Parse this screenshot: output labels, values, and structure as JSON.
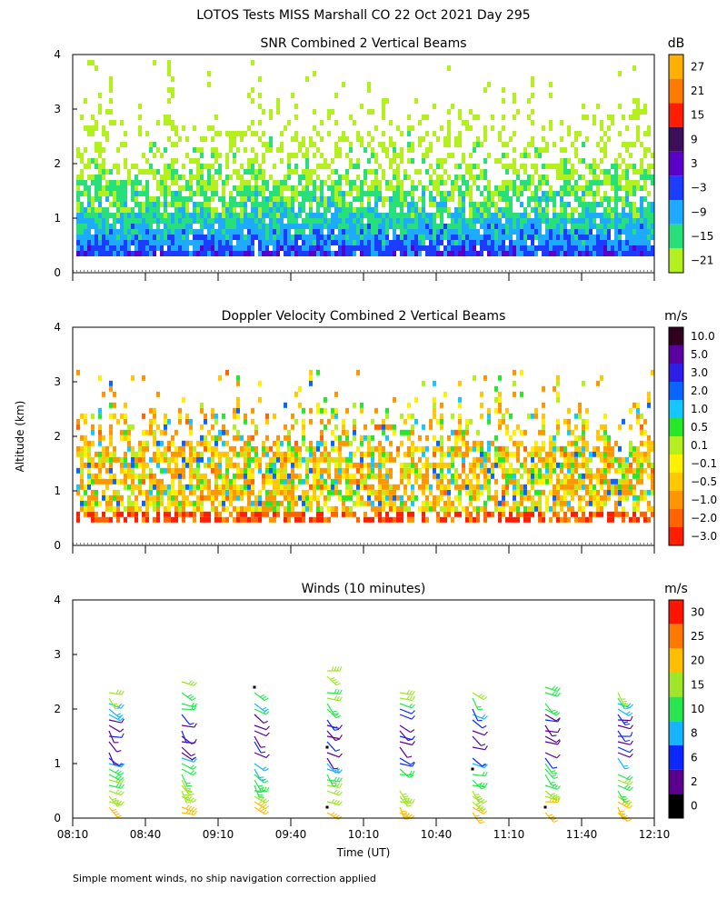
{
  "title": "LOTOS Tests MISS Marshall CO  22 Oct 2021 Day 295",
  "ylabel": "Altitude (km)",
  "xlabel": "Time (UT)",
  "footnote": "Simple moment winds, no ship navigation correction applied",
  "chart_data": [
    {
      "type": "heatmap",
      "title": "SNR Combined 2 Vertical Beams",
      "unit": "dB",
      "ylim": [
        0,
        4
      ],
      "yticks": [
        "0",
        "1",
        "2",
        "3",
        "4"
      ],
      "colorbar": [
        {
          "label": "27",
          "color": "#ffb000"
        },
        {
          "label": "21",
          "color": "#ff7a00"
        },
        {
          "label": "15",
          "color": "#ff1e00"
        },
        {
          "label": "9",
          "color": "#3d0e5a"
        },
        {
          "label": "3",
          "color": "#5a00c8"
        },
        {
          "label": "−3",
          "color": "#1c3cff"
        },
        {
          "label": "−9",
          "color": "#1eaaff"
        },
        {
          "label": "−15",
          "color": "#28e07a"
        },
        {
          "label": "−21",
          "color": "#b4f01e"
        }
      ],
      "profile_km": [
        0.3,
        0.5,
        0.8,
        1.1,
        1.4,
        1.7,
        2.0,
        2.4,
        2.8,
        3.2,
        3.6
      ],
      "profile_db": [
        1,
        -4,
        -8,
        -12,
        -14,
        -17,
        -19,
        -20,
        -21,
        -21,
        -21
      ]
    },
    {
      "type": "heatmap",
      "title": "Doppler Velocity Combined 2 Vertical Beams",
      "unit": "m/s",
      "ylim": [
        0,
        4
      ],
      "yticks": [
        "0",
        "1",
        "2",
        "3",
        "4"
      ],
      "colorbar": [
        {
          "label": "10.0",
          "color": "#300020"
        },
        {
          "label": "5.0",
          "color": "#5a00a0"
        },
        {
          "label": "3.0",
          "color": "#2d1ee6"
        },
        {
          "label": "2.0",
          "color": "#0a64ff"
        },
        {
          "label": "1.0",
          "color": "#14c8ff"
        },
        {
          "label": "0.5",
          "color": "#28e628"
        },
        {
          "label": "0.1",
          "color": "#b4f01e"
        },
        {
          "label": "−0.1",
          "color": "#fff000"
        },
        {
          "label": "−0.5",
          "color": "#ffc800"
        },
        {
          "label": "−1.0",
          "color": "#ff9600"
        },
        {
          "label": "−2.0",
          "color": "#ff6400"
        },
        {
          "label": "−3.0",
          "color": "#ff1e00"
        }
      ]
    },
    {
      "type": "barbs",
      "title": "Winds (10 minutes)",
      "unit": "m/s",
      "ylim": [
        0,
        4
      ],
      "yticks": [
        "0",
        "1",
        "2",
        "3",
        "4"
      ],
      "colorbar": [
        {
          "label": "30",
          "color": "#ff1400"
        },
        {
          "label": "25",
          "color": "#ff7800"
        },
        {
          "label": "20",
          "color": "#ffbe00"
        },
        {
          "label": "15",
          "color": "#a0e628"
        },
        {
          "label": "10",
          "color": "#28e650"
        },
        {
          "label": "8",
          "color": "#14b4ff"
        },
        {
          "label": "6",
          "color": "#0a28ff"
        },
        {
          "label": "2",
          "color": "#5a008c"
        },
        {
          "label": "0",
          "color": "#000000"
        }
      ],
      "profile_times": [
        "08:25",
        "08:55",
        "09:25",
        "09:55",
        "10:25",
        "10:55",
        "11:25",
        "11:55"
      ],
      "wind_speed_profile": {
        "alt_km": [
          0.1,
          0.3,
          0.5,
          0.8,
          1.1,
          1.4,
          1.7,
          2.0,
          2.3,
          2.6
        ],
        "speed_ms": [
          22,
          20,
          16,
          12,
          7,
          5,
          4,
          9,
          15,
          17
        ]
      }
    }
  ],
  "xaxis": {
    "start": "08:10",
    "end": "12:10",
    "ticks": [
      "08:10",
      "08:40",
      "09:10",
      "09:40",
      "10:10",
      "10:40",
      "11:10",
      "11:40",
      "12:10"
    ]
  }
}
